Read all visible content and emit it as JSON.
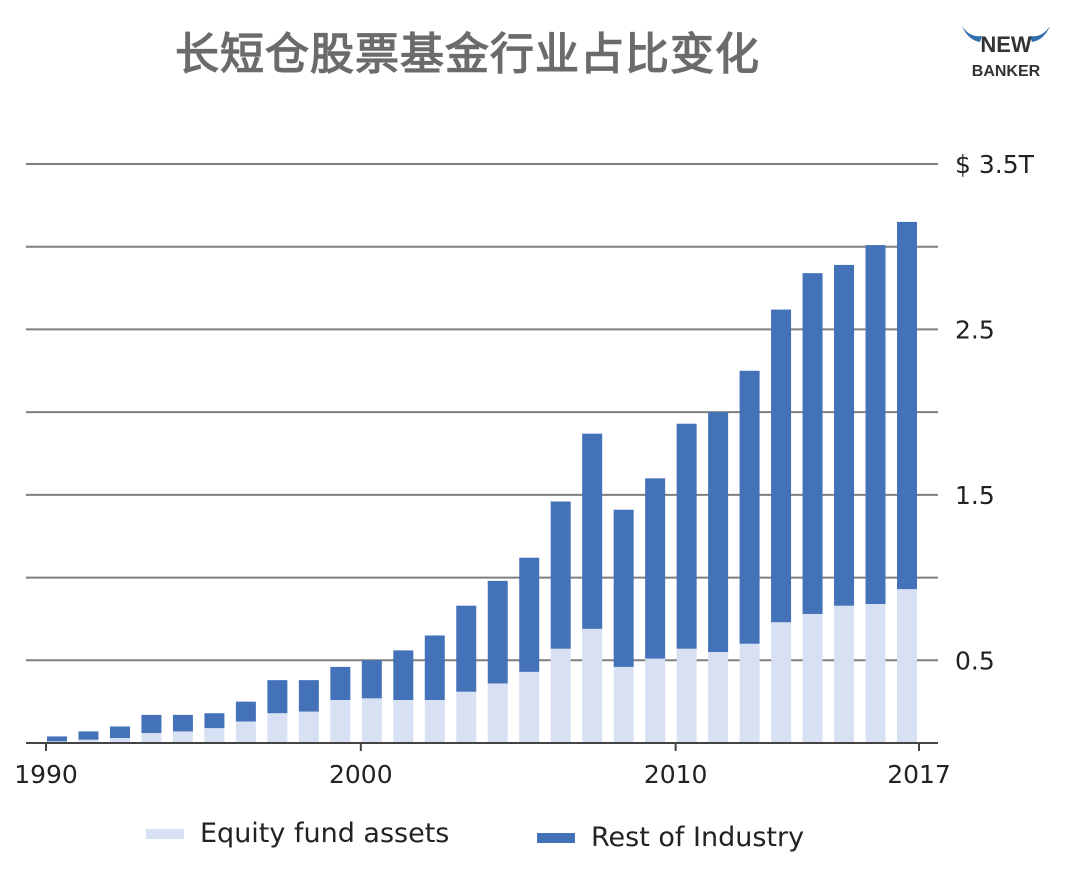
{
  "title": "长短仓股票基金行业占比变化",
  "logo": {
    "line1": "NEW",
    "line2": "BANKER"
  },
  "colors": {
    "equity": "#d8e1f3",
    "rest": "#4472b8",
    "grid": "#7f7f7f"
  },
  "legend": {
    "equity": "Equity fund assets",
    "rest": "Rest of Industry"
  },
  "chart_data": {
    "type": "bar",
    "stacked": true,
    "y_axis_side": "right",
    "grid": true,
    "legend_position": "bottom",
    "x_tick_labels": [
      "1990",
      "2000",
      "2010",
      "2017"
    ],
    "y_tick_labels": [
      "$ 3.5T",
      "2.5",
      "1.5",
      "0.5"
    ],
    "ylim": [
      0,
      3.5
    ],
    "categories": [
      "1990",
      "1991",
      "1992",
      "1993",
      "1994",
      "1995",
      "1996",
      "1997",
      "1998",
      "1999",
      "2000",
      "2001",
      "2002",
      "2003",
      "2004",
      "2005",
      "2006",
      "2007",
      "2008",
      "2009",
      "2010",
      "2011",
      "2012",
      "2013",
      "2014",
      "2015",
      "2016",
      "2017"
    ],
    "series": [
      {
        "name": "Equity fund assets",
        "values": [
          0.01,
          0.02,
          0.03,
          0.06,
          0.07,
          0.09,
          0.13,
          0.18,
          0.19,
          0.26,
          0.27,
          0.26,
          0.26,
          0.31,
          0.36,
          0.43,
          0.57,
          0.69,
          0.46,
          0.51,
          0.57,
          0.55,
          0.6,
          0.73,
          0.78,
          0.83,
          0.84,
          0.93
        ]
      },
      {
        "name": "Rest of Industry",
        "values": [
          0.03,
          0.05,
          0.07,
          0.11,
          0.1,
          0.09,
          0.12,
          0.2,
          0.19,
          0.2,
          0.23,
          0.3,
          0.39,
          0.52,
          0.62,
          0.69,
          0.89,
          1.18,
          0.95,
          1.09,
          1.36,
          1.45,
          1.65,
          1.89,
          2.06,
          2.06,
          2.17,
          2.22
        ]
      }
    ]
  }
}
